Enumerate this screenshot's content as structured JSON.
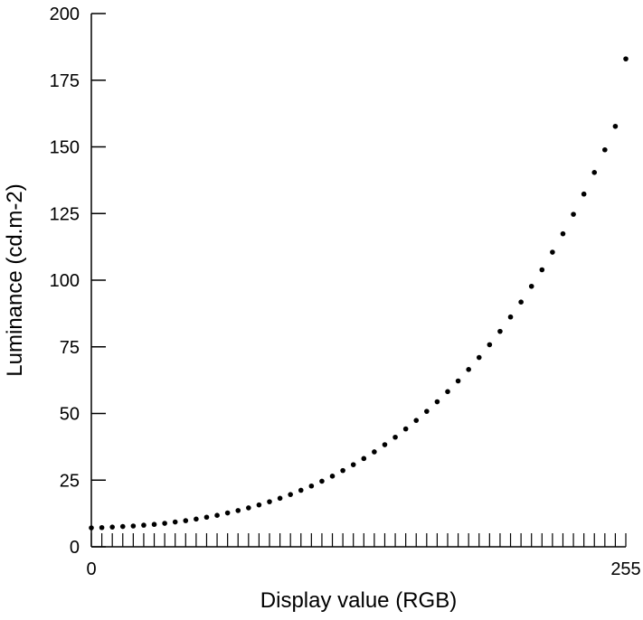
{
  "chart_data": {
    "type": "scatter",
    "title": "",
    "xlabel": "Display value (RGB)",
    "ylabel": "Luminance (cd.m-2)",
    "xlim": [
      0,
      255
    ],
    "ylim": [
      0,
      200
    ],
    "x_tick_labels": [
      "0",
      "255"
    ],
    "y_tick_labels": [
      "0",
      "25",
      "50",
      "75",
      "100",
      "125",
      "150",
      "175",
      "200"
    ],
    "x_minor_tick_step": 5,
    "grid": false,
    "legend": "none",
    "marker_color": "#000000",
    "series": [
      {
        "x": [
          0,
          5,
          10,
          15,
          20,
          25,
          30,
          35,
          40,
          45,
          50,
          55,
          60,
          65,
          70,
          75,
          80,
          85,
          90,
          95,
          100,
          105,
          110,
          115,
          120,
          125,
          130,
          135,
          140,
          145,
          150,
          155,
          160,
          165,
          170,
          175,
          180,
          185,
          190,
          195,
          200,
          205,
          210,
          215,
          220,
          225,
          230,
          235,
          240,
          245,
          250,
          255
        ],
        "y": [
          7.1,
          7.2,
          7.4,
          7.6,
          7.8,
          8.1,
          8.4,
          8.8,
          9.3,
          9.8,
          10.4,
          11.1,
          11.8,
          12.7,
          13.6,
          14.6,
          15.7,
          16.9,
          18.2,
          19.6,
          21.2,
          22.8,
          24.6,
          26.5,
          28.6,
          30.8,
          33.1,
          35.6,
          38.3,
          41.1,
          44.2,
          47.4,
          50.8,
          54.4,
          58.2,
          62.2,
          66.5,
          71.0,
          75.8,
          80.8,
          86.2,
          91.8,
          97.7,
          103.9,
          110.5,
          117.4,
          124.7,
          132.3,
          140.4,
          148.9,
          157.7,
          183.0
        ]
      }
    ]
  }
}
